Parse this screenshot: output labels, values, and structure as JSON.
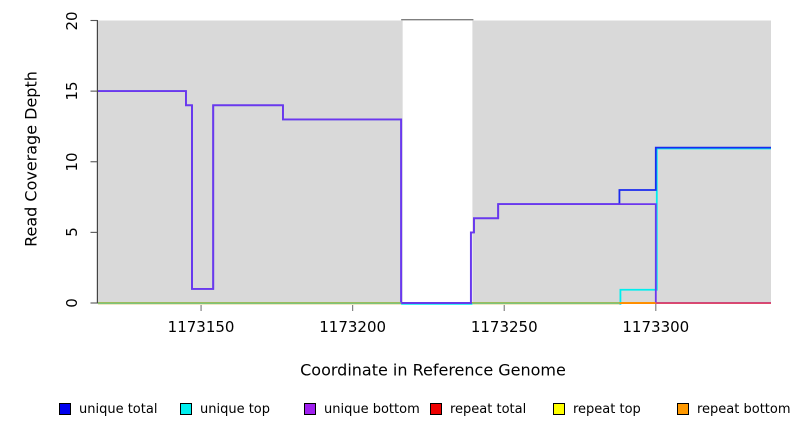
{
  "chart_data": {
    "type": "line",
    "subtype": "step-coverage",
    "title": "",
    "xlabel": "Coordinate in Reference Genome",
    "ylabel": "Read Coverage Depth",
    "xlim": [
      1173116,
      1173338
    ],
    "ylim": [
      0,
      20
    ],
    "x_ticks": [
      1173150,
      1173200,
      1173250,
      1173300
    ],
    "y_ticks": [
      0,
      5,
      10,
      15,
      20
    ],
    "plot_bg": "#d9d9d9",
    "grid": "off",
    "gap_band": {
      "from": 1173216.5,
      "to": 1173239.5,
      "color": "#ffffff"
    },
    "series": [
      {
        "name": "unique total",
        "color": "#0000ee",
        "steps": [
          [
            1173116,
            15
          ],
          [
            1173145,
            14
          ],
          [
            1173147,
            1
          ],
          [
            1173154,
            14
          ],
          [
            1173177,
            13
          ],
          [
            1173216,
            0
          ],
          [
            1173239,
            5
          ],
          [
            1173240,
            6
          ],
          [
            1173248,
            7
          ],
          [
            1173288,
            8
          ],
          [
            1173300,
            11
          ]
        ]
      },
      {
        "name": "unique top",
        "color": "#00eeee",
        "steps": [
          [
            1173116,
            0
          ],
          [
            1173288,
            1
          ],
          [
            1173300,
            11
          ]
        ]
      },
      {
        "name": "unique bottom",
        "color": "#a020f0",
        "steps": [
          [
            1173116,
            15
          ],
          [
            1173145,
            14
          ],
          [
            1173147,
            1
          ],
          [
            1173154,
            14
          ],
          [
            1173177,
            13
          ],
          [
            1173216,
            0
          ],
          [
            1173239,
            5
          ],
          [
            1173240,
            6
          ],
          [
            1173248,
            7
          ],
          [
            1173300,
            0
          ]
        ]
      },
      {
        "name": "repeat total",
        "color": "#ee0000",
        "steps": [
          [
            1173116,
            0
          ]
        ]
      },
      {
        "name": "repeat top",
        "color": "#ffff00",
        "steps": [
          [
            1173116,
            0
          ]
        ]
      },
      {
        "name": "repeat bottom",
        "color": "#ff9900",
        "steps": [
          [
            1173116,
            0
          ],
          [
            1173288,
            0
          ],
          [
            1173300,
            0
          ]
        ]
      }
    ],
    "zero_line_render": [
      {
        "from": 1173116,
        "to": 1173216,
        "color": "#7cc47c",
        "under_color": "#f0e6c2"
      },
      {
        "from": 1173239.5,
        "to": 1173288,
        "color": "#7cc47c",
        "under_color": "#f0e6c2"
      },
      {
        "from": 1173288,
        "to": 1173300,
        "color": "#ff8c00"
      },
      {
        "from": 1173300,
        "to": 1173338,
        "color": "#e0476b"
      }
    ],
    "legend_position": "bottom",
    "legend": [
      {
        "label": "unique total",
        "color": "#0000ee"
      },
      {
        "label": "unique top",
        "color": "#00eeee"
      },
      {
        "label": "unique bottom",
        "color": "#a020f0"
      },
      {
        "label": "repeat total",
        "color": "#ee0000"
      },
      {
        "label": "repeat top",
        "color": "#ffff00"
      },
      {
        "label": "repeat bottom",
        "color": "#ff9900"
      }
    ]
  }
}
